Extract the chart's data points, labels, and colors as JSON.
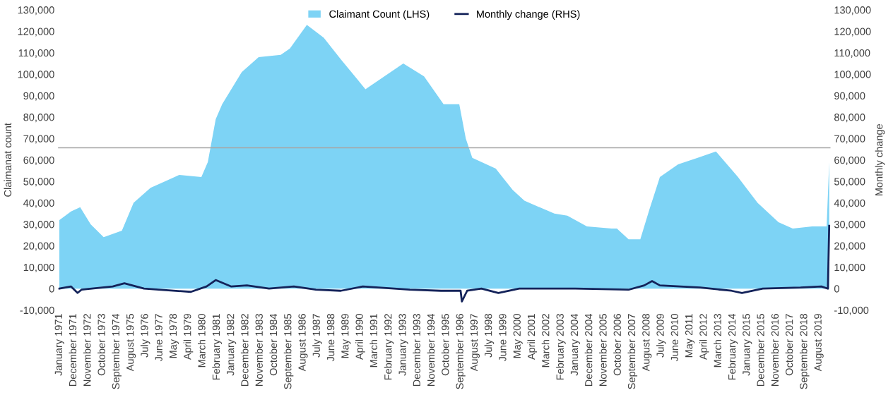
{
  "chart_data": {
    "type": "area",
    "ylabel": "Claimanat count",
    "y2label": "Monthly change",
    "xlim": [
      "1970-12",
      "2020-05"
    ],
    "xticks": [
      {
        "value": "1971-01",
        "label": "January 1971"
      },
      {
        "value": "1971-12",
        "label": "December 1971"
      },
      {
        "value": "1972-11",
        "label": "November 1972"
      },
      {
        "value": "1973-10",
        "label": "October 1973"
      },
      {
        "value": "1974-09",
        "label": "September 1974"
      },
      {
        "value": "1975-08",
        "label": "August 1975"
      },
      {
        "value": "1976-07",
        "label": "July 1976"
      },
      {
        "value": "1977-06",
        "label": "June 1977"
      },
      {
        "value": "1978-05",
        "label": "May 1978"
      },
      {
        "value": "1979-04",
        "label": "April 1979"
      },
      {
        "value": "1980-03",
        "label": "March 1980"
      },
      {
        "value": "1981-02",
        "label": "February 1981"
      },
      {
        "value": "1982-01",
        "label": "January 1982"
      },
      {
        "value": "1982-12",
        "label": "December 1982"
      },
      {
        "value": "1983-11",
        "label": "November 1983"
      },
      {
        "value": "1984-10",
        "label": "October 1984"
      },
      {
        "value": "1985-09",
        "label": "September 1985"
      },
      {
        "value": "1986-08",
        "label": "August 1986"
      },
      {
        "value": "1987-07",
        "label": "July 1987"
      },
      {
        "value": "1988-06",
        "label": "June 1988"
      },
      {
        "value": "1989-05",
        "label": "May 1989"
      },
      {
        "value": "1990-04",
        "label": "April 1990"
      },
      {
        "value": "1991-03",
        "label": "March 1991"
      },
      {
        "value": "1992-02",
        "label": "February 1992"
      },
      {
        "value": "1993-01",
        "label": "January 1993"
      },
      {
        "value": "1993-12",
        "label": "December 1993"
      },
      {
        "value": "1994-11",
        "label": "November 1994"
      },
      {
        "value": "1995-10",
        "label": "October 1995"
      },
      {
        "value": "1996-09",
        "label": "September 1996"
      },
      {
        "value": "1997-08",
        "label": "August 1997"
      },
      {
        "value": "1998-07",
        "label": "July 1998"
      },
      {
        "value": "1999-06",
        "label": "June 1999"
      },
      {
        "value": "2000-05",
        "label": "May 2000"
      },
      {
        "value": "2001-04",
        "label": "April 2001"
      },
      {
        "value": "2002-03",
        "label": "March 2002"
      },
      {
        "value": "2003-02",
        "label": "February 2003"
      },
      {
        "value": "2004-01",
        "label": "January 2004"
      },
      {
        "value": "2004-12",
        "label": "December 2004"
      },
      {
        "value": "2005-11",
        "label": "November 2005"
      },
      {
        "value": "2006-10",
        "label": "October 2006"
      },
      {
        "value": "2007-09",
        "label": "September 2007"
      },
      {
        "value": "2008-08",
        "label": "August 2008"
      },
      {
        "value": "2009-07",
        "label": "July 2009"
      },
      {
        "value": "2010-06",
        "label": "June 2010"
      },
      {
        "value": "2011-05",
        "label": "May 2011"
      },
      {
        "value": "2012-04",
        "label": "April 2012"
      },
      {
        "value": "2013-03",
        "label": "March 2013"
      },
      {
        "value": "2014-02",
        "label": "February 2014"
      },
      {
        "value": "2015-01",
        "label": "January 2015"
      },
      {
        "value": "2015-12",
        "label": "December 2015"
      },
      {
        "value": "2016-11",
        "label": "November 2016"
      },
      {
        "value": "2017-10",
        "label": "October 2017"
      },
      {
        "value": "2018-09",
        "label": "September 2018"
      },
      {
        "value": "2019-08",
        "label": "August 2019"
      }
    ],
    "ylim": [
      -10000,
      130000
    ],
    "yticks": [
      {
        "value": -10000,
        "label": "-10,000"
      },
      0,
      {
        "value": 10000,
        "label": "10,000"
      },
      {
        "value": 20000,
        "label": "20,000"
      },
      {
        "value": 30000,
        "label": "30,000"
      },
      {
        "value": 40000,
        "label": "40,000"
      },
      {
        "value": 50000,
        "label": "50,000"
      },
      {
        "value": 60000,
        "label": "60,000"
      },
      {
        "value": 70000,
        "label": "70,000"
      },
      {
        "value": 80000,
        "label": "80,000"
      },
      {
        "value": 90000,
        "label": "90,000"
      },
      {
        "value": 100000,
        "label": "100,000"
      },
      {
        "value": 110000,
        "label": "110,000"
      },
      {
        "value": 120000,
        "label": "120,000"
      },
      {
        "value": 130000,
        "label": "130,000"
      }
    ],
    "y2lim": [
      -10000,
      130000
    ],
    "y2ticks": [
      {
        "value": -10000,
        "label": "-10,000"
      },
      0,
      {
        "value": 10000,
        "label": "10,000"
      },
      {
        "value": 20000,
        "label": "20,000"
      },
      {
        "value": 30000,
        "label": "30,000"
      },
      {
        "value": 40000,
        "label": "40,000"
      },
      {
        "value": 50000,
        "label": "50,000"
      },
      {
        "value": 60000,
        "label": "60,000"
      },
      {
        "value": 70000,
        "label": "70,000"
      },
      {
        "value": 80000,
        "label": "80,000"
      },
      {
        "value": 90000,
        "label": "90,000"
      },
      {
        "value": 100000,
        "label": "100,000"
      },
      {
        "value": 110000,
        "label": "110,000"
      },
      {
        "value": 120000,
        "label": "120,000"
      },
      {
        "value": 130000,
        "label": "130,000"
      }
    ],
    "series": [
      {
        "name": "Claimant Count (LHS)",
        "color": "#7dd3f5",
        "x": [
          "1971-01",
          "1971-10",
          "1972-05",
          "1973-01",
          "1973-11",
          "1975-01",
          "1975-10",
          "1976-11",
          "1978-09",
          "1980-02",
          "1980-07",
          "1981-01",
          "1981-06",
          "1982-09",
          "1983-10",
          "1985-03",
          "1985-10",
          "1986-11",
          "1987-12",
          "1989-01",
          "1990-08",
          "1993-01",
          "1994-05",
          "1995-08",
          "1996-08",
          "1997-01",
          "1997-06",
          "1998-12",
          "2000-01",
          "2000-10",
          "2002-09",
          "2003-07",
          "2004-10",
          "2006-05",
          "2006-09",
          "2007-06",
          "2008-03",
          "2008-10",
          "2009-06",
          "2010-08",
          "2011-11",
          "2013-01",
          "2014-06",
          "2015-09",
          "2017-01",
          "2017-12",
          "2019-03",
          "2020-02",
          "2020-04"
        ],
        "values": [
          32000,
          36000,
          38000,
          30000,
          24000,
          27000,
          40000,
          47000,
          53000,
          52000,
          59000,
          79000,
          86000,
          101000,
          108000,
          109000,
          112000,
          123000,
          117000,
          107000,
          93000,
          105000,
          99000,
          86000,
          86000,
          70000,
          61000,
          56000,
          46000,
          41000,
          35000,
          34000,
          29000,
          28000,
          28000,
          23000,
          23000,
          37000,
          52000,
          58000,
          61000,
          64000,
          52000,
          40000,
          31000,
          28000,
          29000,
          29000,
          59000
        ]
      },
      {
        "name": "Monthly change (RHS)",
        "type": "line",
        "axis": "y2",
        "color": "#14235a",
        "x": [
          "1971-01",
          "1971-10",
          "1972-03",
          "1972-06",
          "1974-06",
          "1975-03",
          "1976-06",
          "1979-06",
          "1980-06",
          "1981-01",
          "1982-01",
          "1983-01",
          "1984-06",
          "1986-01",
          "1987-06",
          "1989-01",
          "1990-06",
          "1993-06",
          "1995-06",
          "1996-09",
          "1996-10",
          "1997-02",
          "1998-01",
          "1999-02",
          "2000-06",
          "2004-01",
          "2007-06",
          "2008-06",
          "2008-12",
          "2009-06",
          "2012-01",
          "2014-01",
          "2014-09",
          "2016-01",
          "2018-06",
          "2019-10",
          "2020-03",
          "2020-04"
        ],
        "values": [
          0,
          1000,
          -2000,
          -500,
          1000,
          2500,
          0,
          -1500,
          1000,
          4000,
          1000,
          1500,
          0,
          1000,
          -500,
          -1000,
          1000,
          -500,
          -1000,
          -1000,
          -6000,
          -1000,
          0,
          -2000,
          0,
          0,
          -500,
          1500,
          3500,
          1500,
          500,
          -1000,
          -2000,
          0,
          500,
          1000,
          0,
          29300
        ]
      }
    ],
    "ref_lines": [
      {
        "axis": "y",
        "value": 65700,
        "color": "#a6a6a6"
      }
    ],
    "legend": "top",
    "grid": false
  }
}
